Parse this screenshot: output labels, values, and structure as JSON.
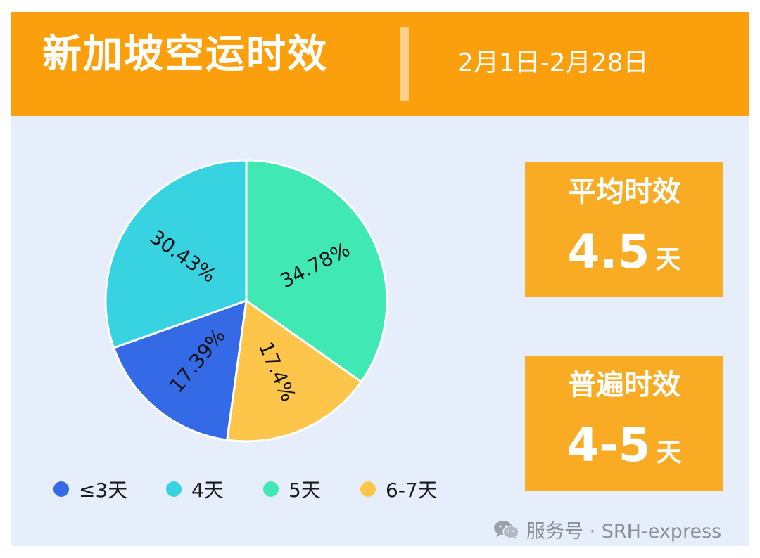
{
  "header": {
    "title": "新加坡空运时效",
    "date_range": "2月1日-2月28日"
  },
  "stats": {
    "average": {
      "label": "平均时效",
      "value": "4.5",
      "unit": "天"
    },
    "common": {
      "label": "普遍时效",
      "value": "4-5",
      "unit": "天"
    }
  },
  "footer": {
    "text": "服务号 · SRH-express",
    "icon": "wechat-icon"
  },
  "colors": {
    "header": "#fb9f0c",
    "card": "#e7eefb",
    "stat_box": "#f8ab23",
    "le3": "#356ae6",
    "d4": "#38d3e1",
    "d5": "#40e8b4",
    "d67": "#fdc54a"
  },
  "chart_data": {
    "type": "pie",
    "title": "",
    "categories": [
      "≤3天",
      "4天",
      "5天",
      "6-7天"
    ],
    "values": [
      17.39,
      30.43,
      34.78,
      17.4
    ],
    "labels": [
      "17.39%",
      "30.43%",
      "34.78%",
      "17.4%"
    ],
    "colors": [
      "#356ae6",
      "#38d3e1",
      "#40e8b4",
      "#fdc54a"
    ],
    "legend_position": "bottom"
  }
}
